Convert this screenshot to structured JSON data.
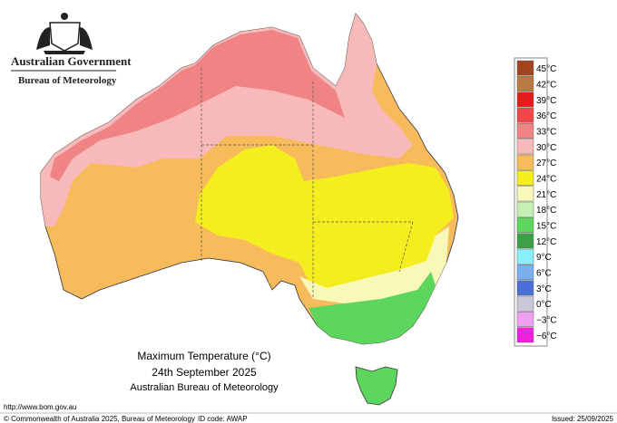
{
  "header": {
    "government": "Australian Government",
    "agency": "Bureau of Meteorology"
  },
  "map": {
    "title": "Maximum Temperature (°C)",
    "date": "24th September 2025",
    "source": "Australian Bureau of Meteorology"
  },
  "legend": {
    "items": [
      {
        "label": "45°C",
        "color": "#a0451f"
      },
      {
        "label": "42°C",
        "color": "#b87a40"
      },
      {
        "label": "39°C",
        "color": "#e41c1c"
      },
      {
        "label": "36°C",
        "color": "#f04848"
      },
      {
        "label": "33°C",
        "color": "#f08484"
      },
      {
        "label": "30°C",
        "color": "#f7b9b9"
      },
      {
        "label": "27°C",
        "color": "#f7bb5c"
      },
      {
        "label": "24°C",
        "color": "#f5ee1e"
      },
      {
        "label": "21°C",
        "color": "#f8f8b8"
      },
      {
        "label": "18°C",
        "color": "#c4f0b4"
      },
      {
        "label": "15°C",
        "color": "#5cd65c"
      },
      {
        "label": "12°C",
        "color": "#3ca046"
      },
      {
        "label": "9°C",
        "color": "#88f0f8"
      },
      {
        "label": "6°C",
        "color": "#7ab0f0"
      },
      {
        "label": "3°C",
        "color": "#4b6fd8"
      },
      {
        "label": "0°C",
        "color": "#c8c8d8"
      },
      {
        "label": "−3°C",
        "color": "#f0a0f0"
      },
      {
        "label": "−6°C",
        "color": "#f020e0"
      }
    ]
  },
  "footer": {
    "url": "http://www.bom.gov.au",
    "copyright": "© Commonwealth of Australia 2025, Bureau of Meteorology",
    "id_code": "ID code: AWAP",
    "issued": "Issued: 25/09/2025"
  }
}
